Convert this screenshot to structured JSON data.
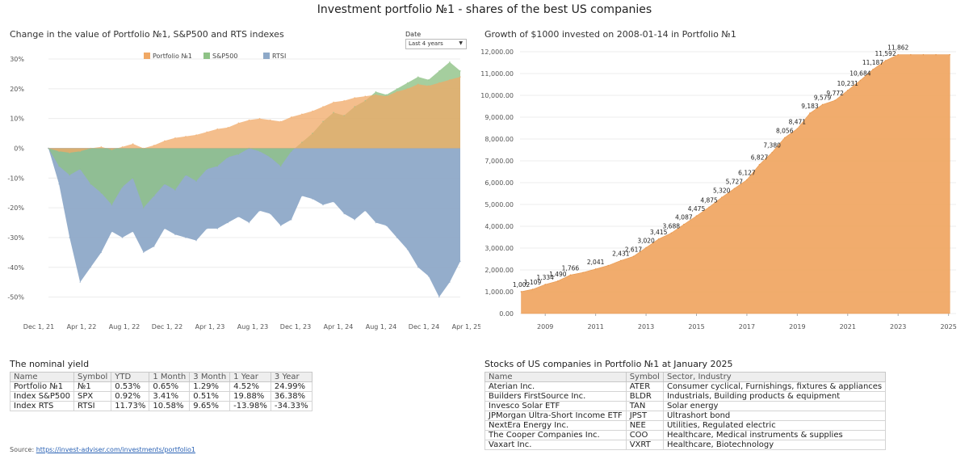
{
  "title": "Investment portfolio №1 - shares of the best US companies",
  "filter": {
    "label": "Date",
    "value": "Last 4 years"
  },
  "source": {
    "label": "Source:",
    "link": "https://invest-adviser.com/investments/portfolio1"
  },
  "colors": {
    "portfolio": "#f0a865",
    "sp500": "#8ec286",
    "rts": "#8ea9c8",
    "sp500_over_rts": "#6fa57d",
    "portfolio_over_sp500": "#c9a04e"
  },
  "chart_data": [
    {
      "type": "area",
      "title": "Change in the value of Portfolio №1, S&P500 and RTS indexes",
      "x_ticks": [
        "Dec 1, 21",
        "Apr 1, 22",
        "Aug 1, 22",
        "Dec 1, 22",
        "Apr 1, 23",
        "Aug 1, 23",
        "Dec 1, 23",
        "Apr 1, 24",
        "Aug 1, 24",
        "Dec 1, 24",
        "Apr 1, 25"
      ],
      "y_ticks": [
        "30%",
        "20%",
        "10%",
        "0%",
        "-10%",
        "-20%",
        "-30%",
        "-40%",
        "-50%"
      ],
      "ylim": [
        -55,
        33
      ],
      "legend": [
        "Portfolio №1",
        "S&P500",
        "RTSI"
      ],
      "legend_position": "top",
      "x": [
        "2021-12-01",
        "2022-01-01",
        "2022-02-01",
        "2022-03-01",
        "2022-04-01",
        "2022-05-01",
        "2022-06-01",
        "2022-07-01",
        "2022-08-01",
        "2022-09-01",
        "2022-10-01",
        "2022-11-01",
        "2022-12-01",
        "2023-01-01",
        "2023-02-01",
        "2023-03-01",
        "2023-04-01",
        "2023-05-01",
        "2023-06-01",
        "2023-07-01",
        "2023-08-01",
        "2023-09-01",
        "2023-10-01",
        "2023-11-01",
        "2023-12-01",
        "2024-01-01",
        "2024-02-01",
        "2024-03-01",
        "2024-04-01",
        "2024-05-01",
        "2024-06-01",
        "2024-07-01",
        "2024-08-01",
        "2024-09-01",
        "2024-10-01",
        "2024-11-01",
        "2024-12-01",
        "2025-01-01",
        "2025-02-01",
        "2025-03-01"
      ],
      "series": [
        {
          "name": "Portfolio №1",
          "values": [
            0,
            -1,
            -1.5,
            -1,
            0,
            0.5,
            -0.5,
            0.5,
            1.5,
            0,
            1,
            2.5,
            3.5,
            4,
            4.5,
            5.5,
            6.5,
            7,
            8.5,
            9.5,
            10,
            9.5,
            9,
            10.5,
            11.5,
            12.5,
            14,
            15.5,
            16,
            17,
            17.5,
            18,
            17.5,
            19,
            20,
            21.5,
            21,
            22,
            23,
            24
          ]
        },
        {
          "name": "S&P500",
          "values": [
            0,
            -6,
            -9,
            -7,
            -12,
            -15,
            -19,
            -13,
            -10,
            -20,
            -16,
            -12,
            -14,
            -9,
            -11,
            -7,
            -6,
            -3,
            -2,
            0,
            -1,
            -3,
            -6,
            -1,
            2,
            5,
            9,
            12,
            11,
            14,
            16,
            19,
            18,
            20,
            22,
            24,
            23,
            26,
            29,
            26
          ]
        },
        {
          "name": "RTSI",
          "values": [
            0,
            -12,
            -30,
            -45,
            -40,
            -35,
            -28,
            -30,
            -28,
            -35,
            -33,
            -27,
            -29,
            -30,
            -31,
            -27,
            -27,
            -25,
            -23,
            -25,
            -21,
            -22,
            -26,
            -24,
            -16,
            -17,
            -19,
            -18,
            -22,
            -24,
            -21,
            -25,
            -26,
            -30,
            -34,
            -40,
            -43,
            -50,
            -45,
            -38
          ]
        }
      ]
    },
    {
      "type": "area",
      "title": "Growth of $1000 invested on 2008-01-14 in Portfolio №1",
      "x_ticks": [
        "2009",
        "2011",
        "2013",
        "2015",
        "2017",
        "2019",
        "2021",
        "2023",
        "2025"
      ],
      "y_ticks": [
        "12,000.00",
        "11,000.00",
        "10,000.00",
        "9,000.00",
        "8,000.00",
        "7,000.00",
        "6,000.00",
        "5,000.00",
        "4,000.00",
        "3,000.00",
        "2,000.00",
        "1,000.00",
        "0.00"
      ],
      "ylim": [
        0,
        12000
      ],
      "xlim": [
        2008,
        2025.3
      ],
      "series": [
        {
          "name": "Portfolio №1",
          "x": [
            2008.05,
            2008.5,
            2009,
            2009.5,
            2010,
            2010.5,
            2011,
            2011.5,
            2012,
            2012.5,
            2013,
            2013.5,
            2014,
            2014.5,
            2015,
            2015.5,
            2016,
            2016.5,
            2017,
            2017.5,
            2018,
            2018.5,
            2019,
            2019.5,
            2020,
            2020.5,
            2021,
            2021.5,
            2022,
            2022.5,
            2023,
            2023.5,
            2024,
            2024.5,
            2025.05
          ],
          "values": [
            1002,
            1109,
            1334,
            1490,
            1766,
            1880,
            2041,
            2200,
            2431,
            2617,
            3020,
            3415,
            3688,
            4087,
            4475,
            4875,
            5320,
            5727,
            6127,
            6827,
            7380,
            8056,
            8471,
            9183,
            9579,
            9772,
            10231,
            10684,
            11187,
            11592,
            11862,
            11862,
            11862,
            11862,
            11862
          ]
        }
      ],
      "point_labels": [
        {
          "x": 2008.05,
          "label": "1,002"
        },
        {
          "x": 2008.5,
          "label": "1,109"
        },
        {
          "x": 2009,
          "label": "1,334"
        },
        {
          "x": 2009.5,
          "label": "1,490"
        },
        {
          "x": 2010,
          "label": "1,766"
        },
        {
          "x": 2011,
          "label": "2,041"
        },
        {
          "x": 2012,
          "label": "2,431"
        },
        {
          "x": 2012.5,
          "label": "2,617"
        },
        {
          "x": 2013,
          "label": "3,020"
        },
        {
          "x": 2013.5,
          "label": "3,415"
        },
        {
          "x": 2014,
          "label": "3,688"
        },
        {
          "x": 2014.5,
          "label": "4,087"
        },
        {
          "x": 2015,
          "label": "4,475"
        },
        {
          "x": 2015.5,
          "label": "4,875"
        },
        {
          "x": 2016,
          "label": "5,320"
        },
        {
          "x": 2016.5,
          "label": "5,727"
        },
        {
          "x": 2017,
          "label": "6,127"
        },
        {
          "x": 2017.5,
          "label": "6,827"
        },
        {
          "x": 2018,
          "label": "7,380"
        },
        {
          "x": 2018.5,
          "label": "8,056"
        },
        {
          "x": 2019,
          "label": "8,471"
        },
        {
          "x": 2019.5,
          "label": "9,183"
        },
        {
          "x": 2020,
          "label": "9,579"
        },
        {
          "x": 2020.5,
          "label": "9,772"
        },
        {
          "x": 2021,
          "label": "10,231"
        },
        {
          "x": 2021.5,
          "label": "10,684"
        },
        {
          "x": 2022,
          "label": "11,187"
        },
        {
          "x": 2022.5,
          "label": "11,592"
        },
        {
          "x": 2023,
          "label": "11,862"
        }
      ]
    }
  ],
  "yield_table": {
    "title": "The nominal yield",
    "headers": [
      "Name",
      "Symbol",
      "YTD",
      "1 Month",
      "3 Month",
      "1 Year",
      "3 Year"
    ],
    "rows": [
      [
        "Portfolio №1",
        "№1",
        "0.53%",
        "0.65%",
        "1.29%",
        "4.52%",
        "24.99%"
      ],
      [
        "Index S&P500",
        "SPX",
        "0.92%",
        "3.41%",
        "0.51%",
        "19.88%",
        "36.38%"
      ],
      [
        "Index RTS",
        "RTSI",
        "11.73%",
        "10.58%",
        "9.65%",
        "-13.98%",
        "-34.33%"
      ]
    ]
  },
  "stocks_table": {
    "title": "Stocks of US companies in Portfolio №1 at January 2025",
    "headers": [
      "Name",
      "Symbol",
      "Sector, Industry"
    ],
    "rows": [
      [
        "Aterian Inc.",
        "ATER",
        "Consumer cyclical, Furnishings, fixtures & appliances"
      ],
      [
        "Builders FirstSource Inc.",
        "BLDR",
        "Industrials, Building products & equipment"
      ],
      [
        "Invesco Solar ETF",
        "TAN",
        "Solar energy"
      ],
      [
        "JPMorgan Ultra-Short Income ETF",
        "JPST",
        "Ultrashort bond"
      ],
      [
        "NextEra Energy Inc.",
        "NEE",
        "Utilities, Regulated electric"
      ],
      [
        "The Cooper Companies Inc.",
        "COO",
        "Healthcare, Medical instruments & supplies"
      ],
      [
        "Vaxart Inc.",
        "VXRT",
        "Healthcare, Biotechnology"
      ]
    ]
  }
}
